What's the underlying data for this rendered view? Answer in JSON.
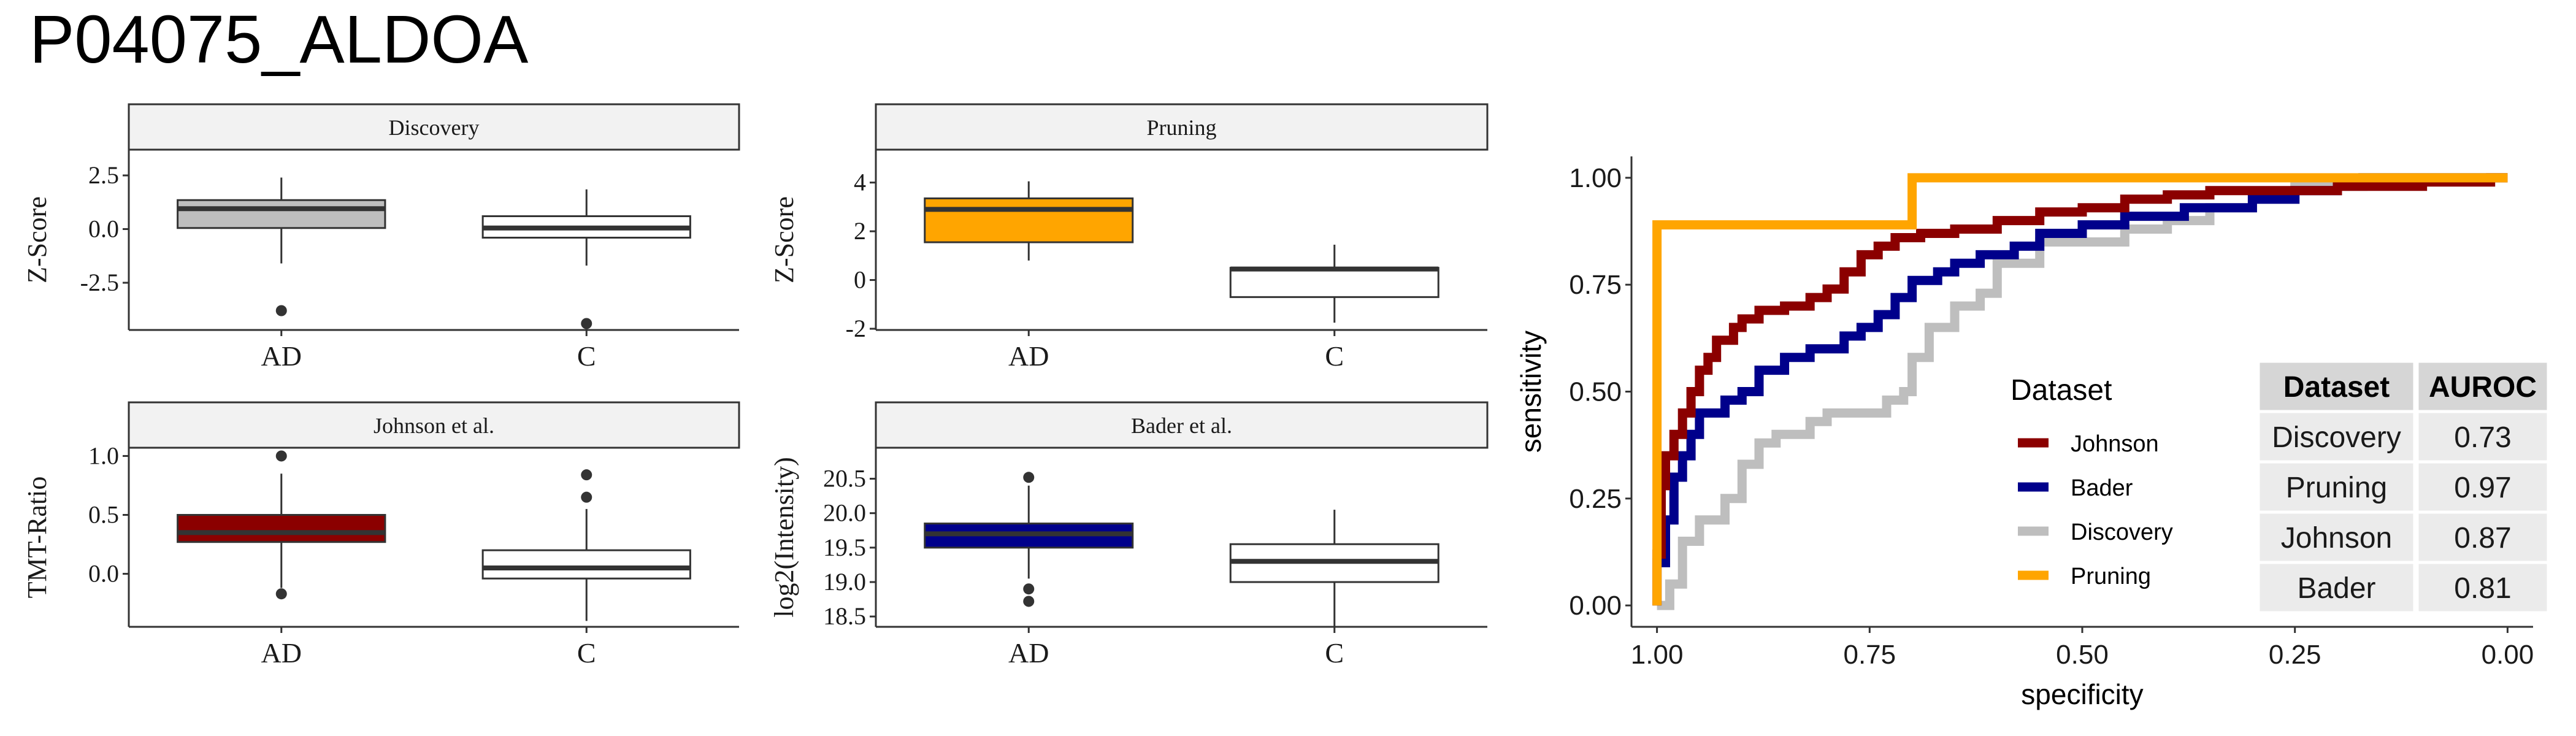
{
  "figure": {
    "title": "P04075_ALDOA"
  },
  "chart_data": [
    {
      "type": "box",
      "panel": "Discovery",
      "categories": [
        "AD",
        "C"
      ],
      "ylabel": "Z-Score",
      "ylim": [
        -4.7,
        3.7
      ],
      "yticks": [
        {
          "value": 2.5,
          "label": "2.5"
        },
        {
          "value": 0,
          "label": "0.0"
        },
        {
          "value": -2.5,
          "label": "-2.5"
        }
      ],
      "boxes": [
        {
          "category": "AD",
          "q1": 0.05,
          "median": 0.95,
          "q3": 1.35,
          "whisker_low": -1.6,
          "whisker_high": 2.4,
          "outliers": [
            -3.8
          ],
          "fill": "#BEBEBE"
        },
        {
          "category": "C",
          "q1": -0.4,
          "median": 0.05,
          "q3": 0.6,
          "whisker_low": -1.7,
          "whisker_high": 1.85,
          "outliers": [
            -4.4
          ],
          "fill": "#FFFFFF"
        }
      ]
    },
    {
      "type": "box",
      "panel": "Pruning",
      "categories": [
        "AD",
        "C"
      ],
      "ylabel": "Z-Score",
      "ylim": [
        -2.05,
        5.35
      ],
      "yticks": [
        {
          "value": 4,
          "label": "4"
        },
        {
          "value": 2,
          "label": "2"
        },
        {
          "value": 0,
          "label": "0"
        },
        {
          "value": -2,
          "label": "-2"
        }
      ],
      "boxes": [
        {
          "category": "AD",
          "q1": 1.55,
          "median": 2.9,
          "q3": 3.35,
          "whisker_low": 0.8,
          "whisker_high": 4.05,
          "outliers": [],
          "fill": "#FFA500"
        },
        {
          "category": "C",
          "q1": -0.7,
          "median": 0.45,
          "q3": 0.5,
          "whisker_low": -1.75,
          "whisker_high": 1.45,
          "outliers": [],
          "fill": "#FFFFFF"
        }
      ]
    },
    {
      "type": "box",
      "panel": "Johnson et al.",
      "categories": [
        "AD",
        "C"
      ],
      "ylabel": "TMT-Ratio",
      "ylim": [
        -0.45,
        1.07
      ],
      "yticks": [
        {
          "value": 1.0,
          "label": "1.0"
        },
        {
          "value": 0.5,
          "label": "0.5"
        },
        {
          "value": 0.0,
          "label": "0.0"
        }
      ],
      "boxes": [
        {
          "category": "AD",
          "q1": 0.27,
          "median": 0.35,
          "q3": 0.5,
          "whisker_low": -0.12,
          "whisker_high": 0.85,
          "outliers": [
            1.0,
            -0.17
          ],
          "fill": "#8B0000"
        },
        {
          "category": "C",
          "q1": -0.04,
          "median": 0.05,
          "q3": 0.2,
          "whisker_low": -0.4,
          "whisker_high": 0.55,
          "outliers": [
            0.84,
            0.65
          ],
          "fill": "#FFFFFF"
        }
      ]
    },
    {
      "type": "box",
      "panel": "Bader et al.",
      "categories": [
        "AD",
        "C"
      ],
      "ylabel": "log2(Intensity)",
      "ylim": [
        18.35,
        20.95
      ],
      "yticks": [
        {
          "value": 20.5,
          "label": "20.5"
        },
        {
          "value": 20.0,
          "label": "20.0"
        },
        {
          "value": 19.5,
          "label": "19.5"
        },
        {
          "value": 19.0,
          "label": "19.0"
        },
        {
          "value": 18.5,
          "label": "18.5"
        }
      ],
      "boxes": [
        {
          "category": "AD",
          "q1": 19.5,
          "median": 19.7,
          "q3": 19.85,
          "whisker_low": 19.05,
          "whisker_high": 20.4,
          "outliers": [
            20.52,
            18.9,
            18.72
          ],
          "fill": "#00008B"
        },
        {
          "category": "C",
          "q1": 19.0,
          "median": 19.3,
          "q3": 19.55,
          "whisker_low": 18.35,
          "whisker_high": 20.05,
          "outliers": [],
          "fill": "#FFFFFF"
        }
      ]
    },
    {
      "type": "line",
      "panel": "roc",
      "xlabel": "specificity",
      "ylabel": "sensitivity",
      "x_reversed": true,
      "xlim": [
        1.03,
        -0.03
      ],
      "ylim": [
        -0.05,
        1.05
      ],
      "xticks": [
        {
          "value": 1.0,
          "label": "1.00"
        },
        {
          "value": 0.75,
          "label": "0.75"
        },
        {
          "value": 0.5,
          "label": "0.50"
        },
        {
          "value": 0.25,
          "label": "0.25"
        },
        {
          "value": 0.0,
          "label": "0.00"
        }
      ],
      "yticks": [
        {
          "value": 1.0,
          "label": "1.00"
        },
        {
          "value": 0.75,
          "label": "0.75"
        },
        {
          "value": 0.5,
          "label": "0.50"
        },
        {
          "value": 0.25,
          "label": "0.25"
        },
        {
          "value": 0.0,
          "label": "0.00"
        }
      ],
      "legend": {
        "title": "Dataset",
        "position": "inside-bottom-center"
      },
      "series": [
        {
          "name": "Discovery",
          "color": "#BEBEBE",
          "points": [
            [
              1.0,
              0.0
            ],
            [
              0.985,
              0.0
            ],
            [
              0.985,
              0.05
            ],
            [
              0.97,
              0.05
            ],
            [
              0.97,
              0.15
            ],
            [
              0.95,
              0.15
            ],
            [
              0.95,
              0.2
            ],
            [
              0.92,
              0.2
            ],
            [
              0.92,
              0.25
            ],
            [
              0.9,
              0.25
            ],
            [
              0.9,
              0.33
            ],
            [
              0.88,
              0.33
            ],
            [
              0.88,
              0.38
            ],
            [
              0.86,
              0.38
            ],
            [
              0.86,
              0.4
            ],
            [
              0.82,
              0.4
            ],
            [
              0.82,
              0.43
            ],
            [
              0.8,
              0.43
            ],
            [
              0.8,
              0.45
            ],
            [
              0.73,
              0.45
            ],
            [
              0.73,
              0.48
            ],
            [
              0.71,
              0.48
            ],
            [
              0.71,
              0.5
            ],
            [
              0.7,
              0.5
            ],
            [
              0.7,
              0.58
            ],
            [
              0.68,
              0.58
            ],
            [
              0.68,
              0.65
            ],
            [
              0.65,
              0.65
            ],
            [
              0.65,
              0.7
            ],
            [
              0.62,
              0.7
            ],
            [
              0.62,
              0.73
            ],
            [
              0.6,
              0.73
            ],
            [
              0.6,
              0.8
            ],
            [
              0.55,
              0.8
            ],
            [
              0.55,
              0.85
            ],
            [
              0.45,
              0.85
            ],
            [
              0.45,
              0.88
            ],
            [
              0.4,
              0.88
            ],
            [
              0.4,
              0.9
            ],
            [
              0.35,
              0.9
            ],
            [
              0.35,
              0.93
            ],
            [
              0.3,
              0.93
            ],
            [
              0.3,
              0.95
            ],
            [
              0.25,
              0.95
            ],
            [
              0.25,
              0.98
            ],
            [
              0.17,
              0.98
            ],
            [
              0.17,
              1.0
            ],
            [
              0.0,
              1.0
            ]
          ]
        },
        {
          "name": "Bader",
          "color": "#00008B",
          "points": [
            [
              1.0,
              0.0
            ],
            [
              1.0,
              0.1
            ],
            [
              0.99,
              0.1
            ],
            [
              0.99,
              0.2
            ],
            [
              0.98,
              0.2
            ],
            [
              0.98,
              0.3
            ],
            [
              0.97,
              0.3
            ],
            [
              0.97,
              0.35
            ],
            [
              0.96,
              0.35
            ],
            [
              0.96,
              0.4
            ],
            [
              0.95,
              0.4
            ],
            [
              0.95,
              0.45
            ],
            [
              0.92,
              0.45
            ],
            [
              0.92,
              0.48
            ],
            [
              0.9,
              0.48
            ],
            [
              0.9,
              0.5
            ],
            [
              0.88,
              0.5
            ],
            [
              0.88,
              0.55
            ],
            [
              0.85,
              0.55
            ],
            [
              0.85,
              0.58
            ],
            [
              0.82,
              0.58
            ],
            [
              0.82,
              0.6
            ],
            [
              0.78,
              0.6
            ],
            [
              0.78,
              0.63
            ],
            [
              0.76,
              0.63
            ],
            [
              0.76,
              0.65
            ],
            [
              0.74,
              0.65
            ],
            [
              0.74,
              0.68
            ],
            [
              0.72,
              0.68
            ],
            [
              0.72,
              0.72
            ],
            [
              0.7,
              0.72
            ],
            [
              0.7,
              0.76
            ],
            [
              0.67,
              0.76
            ],
            [
              0.67,
              0.78
            ],
            [
              0.65,
              0.78
            ],
            [
              0.65,
              0.8
            ],
            [
              0.62,
              0.8
            ],
            [
              0.62,
              0.82
            ],
            [
              0.58,
              0.82
            ],
            [
              0.58,
              0.84
            ],
            [
              0.55,
              0.84
            ],
            [
              0.55,
              0.87
            ],
            [
              0.5,
              0.87
            ],
            [
              0.5,
              0.89
            ],
            [
              0.45,
              0.89
            ],
            [
              0.45,
              0.91
            ],
            [
              0.38,
              0.91
            ],
            [
              0.38,
              0.93
            ],
            [
              0.3,
              0.93
            ],
            [
              0.3,
              0.95
            ],
            [
              0.25,
              0.95
            ],
            [
              0.25,
              0.97
            ],
            [
              0.2,
              0.97
            ],
            [
              0.2,
              0.99
            ],
            [
              0.17,
              0.99
            ],
            [
              0.17,
              1.0
            ],
            [
              0.0,
              1.0
            ]
          ]
        },
        {
          "name": "Johnson",
          "color": "#8B0000",
          "points": [
            [
              1.0,
              0.0
            ],
            [
              1.0,
              0.12
            ],
            [
              0.995,
              0.12
            ],
            [
              0.995,
              0.28
            ],
            [
              0.99,
              0.28
            ],
            [
              0.99,
              0.35
            ],
            [
              0.98,
              0.35
            ],
            [
              0.98,
              0.4
            ],
            [
              0.97,
              0.4
            ],
            [
              0.97,
              0.45
            ],
            [
              0.96,
              0.45
            ],
            [
              0.96,
              0.5
            ],
            [
              0.95,
              0.5
            ],
            [
              0.95,
              0.55
            ],
            [
              0.94,
              0.55
            ],
            [
              0.94,
              0.58
            ],
            [
              0.93,
              0.58
            ],
            [
              0.93,
              0.62
            ],
            [
              0.91,
              0.62
            ],
            [
              0.91,
              0.65
            ],
            [
              0.9,
              0.65
            ],
            [
              0.9,
              0.67
            ],
            [
              0.88,
              0.67
            ],
            [
              0.88,
              0.69
            ],
            [
              0.85,
              0.69
            ],
            [
              0.85,
              0.7
            ],
            [
              0.82,
              0.7
            ],
            [
              0.82,
              0.72
            ],
            [
              0.8,
              0.72
            ],
            [
              0.8,
              0.74
            ],
            [
              0.78,
              0.74
            ],
            [
              0.78,
              0.78
            ],
            [
              0.76,
              0.78
            ],
            [
              0.76,
              0.82
            ],
            [
              0.74,
              0.82
            ],
            [
              0.74,
              0.84
            ],
            [
              0.72,
              0.84
            ],
            [
              0.72,
              0.86
            ],
            [
              0.69,
              0.86
            ],
            [
              0.69,
              0.87
            ],
            [
              0.65,
              0.87
            ],
            [
              0.65,
              0.88
            ],
            [
              0.6,
              0.88
            ],
            [
              0.6,
              0.9
            ],
            [
              0.55,
              0.9
            ],
            [
              0.55,
              0.92
            ],
            [
              0.5,
              0.92
            ],
            [
              0.5,
              0.93
            ],
            [
              0.45,
              0.93
            ],
            [
              0.45,
              0.95
            ],
            [
              0.4,
              0.95
            ],
            [
              0.4,
              0.96
            ],
            [
              0.35,
              0.96
            ],
            [
              0.35,
              0.97
            ],
            [
              0.2,
              0.97
            ],
            [
              0.2,
              0.98
            ],
            [
              0.1,
              0.98
            ],
            [
              0.1,
              0.99
            ],
            [
              0.02,
              0.99
            ],
            [
              0.02,
              1.0
            ],
            [
              0.0,
              1.0
            ]
          ]
        },
        {
          "name": "Pruning",
          "color": "#FFA500",
          "points": [
            [
              1.0,
              0.0
            ],
            [
              1.0,
              0.89
            ],
            [
              0.7,
              0.89
            ],
            [
              0.7,
              1.0
            ],
            [
              0.0,
              1.0
            ]
          ]
        }
      ],
      "legend_entries": [
        {
          "name": "Johnson",
          "color": "#8B0000"
        },
        {
          "name": "Bader",
          "color": "#00008B"
        },
        {
          "name": "Discovery",
          "color": "#BEBEBE"
        },
        {
          "name": "Pruning",
          "color": "#FFA500"
        }
      ],
      "table": {
        "headers": [
          "Dataset",
          "AUROC"
        ],
        "rows": [
          [
            "Discovery",
            "0.73"
          ],
          [
            "Pruning",
            "0.97"
          ],
          [
            "Johnson",
            "0.87"
          ],
          [
            "Bader",
            "0.81"
          ]
        ]
      }
    }
  ]
}
